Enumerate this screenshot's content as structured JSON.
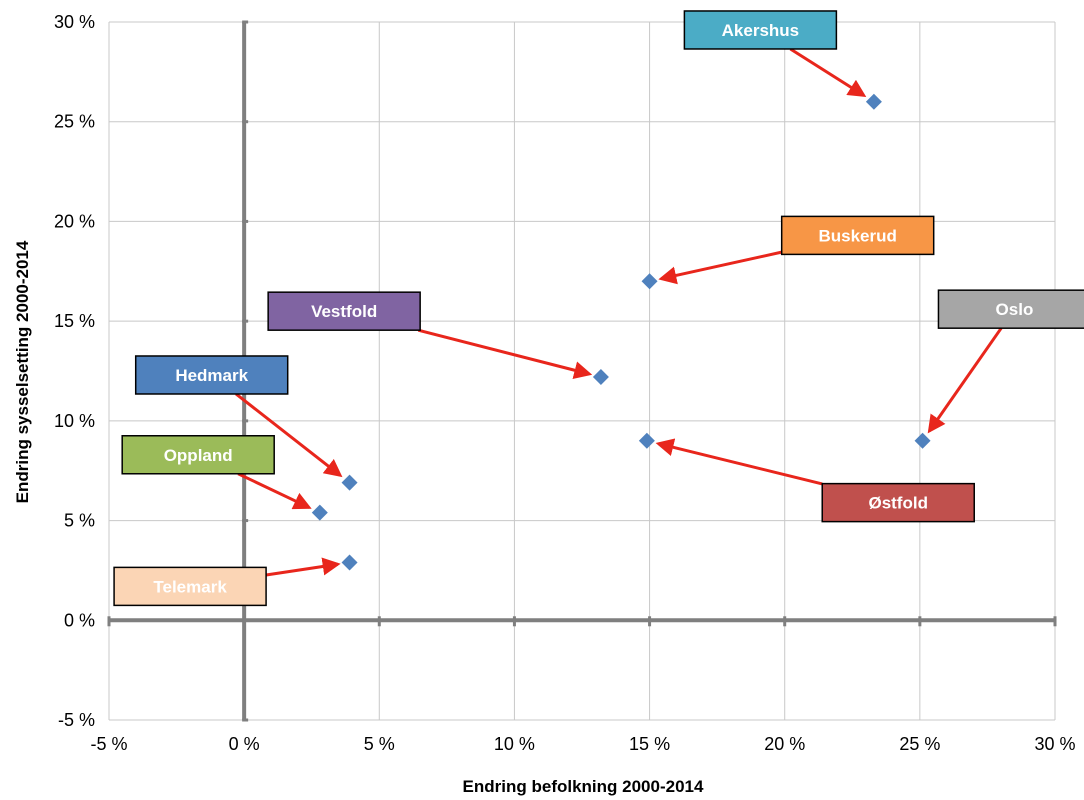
{
  "chart_data": {
    "type": "scatter",
    "xlabel": "Endring befolkning 2000-2014",
    "ylabel": "Endring sysselsetting 2000-2014",
    "xlim": [
      -5,
      30
    ],
    "ylim": [
      -5,
      30
    ],
    "x_ticks": [
      "-5 %",
      "0 %",
      "5 %",
      "10 %",
      "15 %",
      "20 %",
      "25 %",
      "30 %"
    ],
    "y_ticks": [
      "-5 %",
      "0 %",
      "5 %",
      "10 %",
      "15 %",
      "20 %",
      "25 %",
      "30 %"
    ],
    "grid": true,
    "marker_color": "#4f81bd",
    "arrow_color": "#e8261c",
    "points": [
      {
        "name": "Akershus",
        "x": 23.3,
        "y": 26.0,
        "color": "#4bacc6",
        "text_color": "#ffffff",
        "label_at": [
          19.1,
          29.6
        ]
      },
      {
        "name": "Buskerud",
        "x": 15.0,
        "y": 17.0,
        "color": "#f79646",
        "text_color": "#ffffff",
        "label_at": [
          22.7,
          19.3
        ]
      },
      {
        "name": "Vestfold",
        "x": 13.2,
        "y": 12.2,
        "color": "#8064a2",
        "text_color": "#ffffff",
        "label_at": [
          3.7,
          15.5
        ]
      },
      {
        "name": "Oslo",
        "x": 25.1,
        "y": 9.0,
        "color": "#a6a6a6",
        "text_color": "#ffffff",
        "label_at": [
          28.5,
          15.6
        ]
      },
      {
        "name": "Hedmark",
        "x": 3.9,
        "y": 6.9,
        "color": "#4f81bd",
        "text_color": "#ffffff",
        "label_at": [
          -1.2,
          12.3
        ]
      },
      {
        "name": "Oppland",
        "x": 2.8,
        "y": 5.4,
        "color": "#9bbb59",
        "text_color": "#ffffff",
        "label_at": [
          -1.7,
          8.3
        ]
      },
      {
        "name": "Østfold",
        "x": 14.9,
        "y": 9.0,
        "color": "#c0504d",
        "text_color": "#ffffff",
        "label_at": [
          24.2,
          5.9
        ]
      },
      {
        "name": "Telemark",
        "x": 3.9,
        "y": 2.9,
        "color": "#fbd5b5",
        "text_color": "#ffffff",
        "label_at": [
          -2.0,
          1.7
        ]
      }
    ]
  }
}
